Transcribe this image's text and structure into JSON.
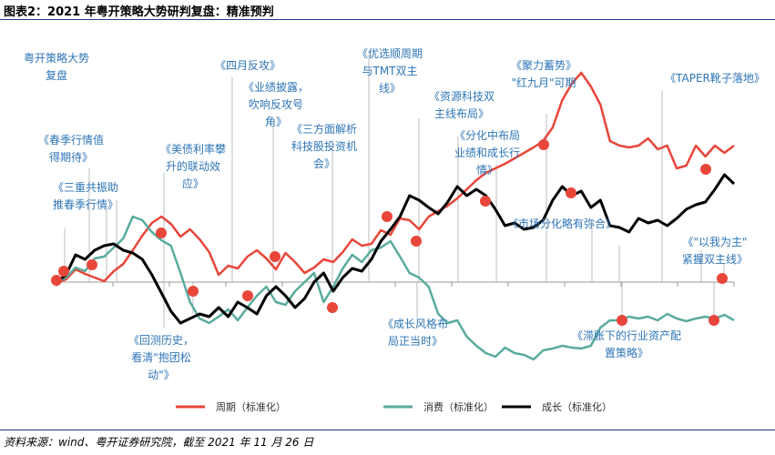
{
  "title": "图表2：2021 年粤开策略大势研判复盘：精准预判",
  "source": "资料来源：wind、粤开证券研究院，截至 2021 年 11 月 26 日",
  "colors": {
    "cycle": "#e8463a",
    "consumption": "#5aab9e",
    "growth": "#000000",
    "annotation": "#2e75b6"
  },
  "chart_data": {
    "type": "line",
    "title": "图表2：2021 年粤开策略大势研判复盘：精准预判",
    "legend_position": "bottom",
    "grid": false,
    "x_range": [
      "2021-01",
      "2021-11-26"
    ],
    "series": [
      {
        "name": "周期（标准化）",
        "color": "#e8463a",
        "values": [
          0,
          3,
          14,
          9,
          5,
          1,
          12,
          20,
          35,
          51,
          65,
          72,
          64,
          50,
          58,
          47,
          33,
          8,
          18,
          15,
          28,
          35,
          26,
          14,
          32,
          22,
          10,
          16,
          25,
          22,
          33,
          47,
          40,
          42,
          57,
          52,
          70,
          68,
          58,
          72,
          78,
          84,
          92,
          102,
          112,
          120,
          125,
          130,
          136,
          142,
          148,
          155,
          170,
          200,
          218,
          230,
          215,
          195,
          155,
          150,
          148,
          150,
          158,
          146,
          150,
          125,
          128,
          150,
          138,
          150,
          142,
          150
        ]
      },
      {
        "name": "消费（标准化）",
        "color": "#5aab9e",
        "values": [
          0,
          5,
          16,
          12,
          26,
          28,
          38,
          48,
          72,
          68,
          55,
          46,
          40,
          10,
          -22,
          -40,
          -45,
          -38,
          -30,
          -42,
          -28,
          -15,
          -5,
          -22,
          -25,
          -10,
          0,
          10,
          -22,
          -5,
          15,
          30,
          22,
          35,
          38,
          45,
          28,
          10,
          5,
          -5,
          -35,
          -45,
          -42,
          -60,
          -70,
          -78,
          -82,
          -72,
          -78,
          -80,
          -85,
          -75,
          -73,
          -70,
          -72,
          -73,
          -70,
          -50,
          -42,
          -42,
          -38,
          -40,
          -38,
          -42,
          -35,
          -40,
          -43,
          -40,
          -38,
          -40,
          -36,
          -42
        ]
      },
      {
        "name": "成长（标准化）",
        "color": "#000000",
        "values": [
          0,
          8,
          30,
          25,
          35,
          40,
          42,
          35,
          32,
          25,
          8,
          -12,
          -32,
          -45,
          -40,
          -35,
          -38,
          -28,
          -38,
          -22,
          -28,
          -35,
          -15,
          -5,
          -15,
          -28,
          -18,
          0,
          10,
          -10,
          5,
          15,
          12,
          25,
          45,
          58,
          72,
          95,
          90,
          82,
          75,
          88,
          105,
          95,
          102,
          95,
          80,
          62,
          65,
          58,
          60,
          68,
          90,
          105,
          95,
          100,
          82,
          90,
          62,
          60,
          55,
          70,
          65,
          68,
          62,
          70,
          80,
          85,
          88,
          102,
          118,
          108
        ]
      }
    ]
  },
  "annotations": [
    [
      "粤开策略大势",
      "复盘"
    ],
    [
      "《春季行情值",
      "得期待》"
    ],
    [
      "《三重共振助",
      "推春季行情》"
    ],
    [
      "《美债利率攀",
      "升的联动效",
      "应》"
    ],
    [
      "《四月反攻》"
    ],
    [
      "《业绩披露，",
      "吹响反攻号",
      "角》"
    ],
    [
      "《三方面解析",
      "科技股投资机",
      "会》"
    ],
    [
      "《优选顺周期",
      "与TMT双主",
      "线》"
    ],
    [
      "《资源科技双",
      "主线布局》"
    ],
    [
      "《分化中布局",
      "业绩和成长行",
      "情》"
    ],
    [
      "《聚力蓄势》",
      "\"红九月\"可期"
    ],
    [
      "《市场分化略有弥合》"
    ],
    [
      "《TAPER靴子落地》"
    ],
    [
      "《\"以我为主\"",
      "紧握双主线》"
    ],
    [
      "《回测历史，",
      "看清\"抱团松",
      "动\"》"
    ],
    [
      "《成长风格布",
      "局正当时》"
    ],
    [
      "《滞胀下的行业资产配",
      "置策略》"
    ]
  ],
  "legend": [
    "周期（标准化）",
    "消费（标准化）",
    "成长（标准化）"
  ]
}
